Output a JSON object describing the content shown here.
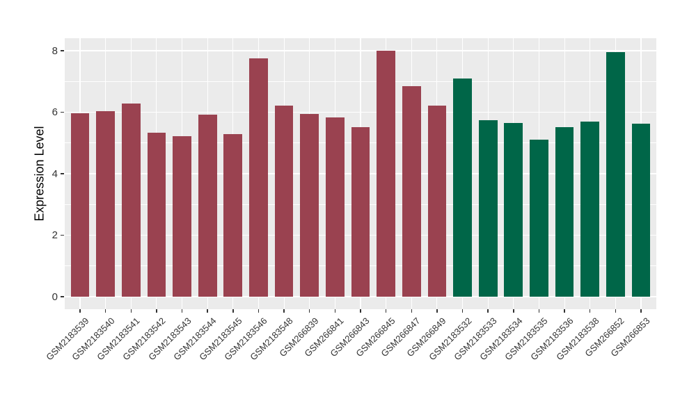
{
  "figure": {
    "ylabel": "Expression Level"
  },
  "chart_data": {
    "type": "bar",
    "title": "",
    "xlabel": "",
    "ylabel": "Expression Level",
    "panel_background": "#EBEBEB",
    "gridline_color": "#FFFFFF",
    "legend": "none",
    "y_ticks": [
      "0",
      "2",
      "4",
      "6",
      "8"
    ],
    "y_tick_values": [
      0,
      2,
      4,
      6,
      8
    ],
    "y_minor_tick_values": [
      1,
      3,
      5,
      7
    ],
    "ylim": [
      -0.41,
      8.41
    ],
    "group_colors": {
      "red": "#9A4250",
      "green": "#006648"
    },
    "categories": [
      "GSM2183539",
      "GSM2183540",
      "GSM2183541",
      "GSM2183542",
      "GSM2183543",
      "GSM2183544",
      "GSM2183545",
      "GSM2183546",
      "GSM2183548",
      "GSM266839",
      "GSM266841",
      "GSM266843",
      "GSM266845",
      "GSM266847",
      "GSM266849",
      "GSM2183532",
      "GSM2183533",
      "GSM2183534",
      "GSM2183535",
      "GSM2183536",
      "GSM2183538",
      "GSM266852",
      "GSM266853"
    ],
    "values": [
      5.97,
      6.03,
      6.28,
      5.34,
      5.21,
      5.92,
      5.28,
      7.76,
      6.22,
      5.94,
      5.84,
      5.52,
      8.0,
      6.85,
      6.22,
      7.09,
      5.74,
      5.66,
      5.11,
      5.52,
      5.7,
      7.95,
      5.63
    ],
    "groups": [
      "red",
      "red",
      "red",
      "red",
      "red",
      "red",
      "red",
      "red",
      "red",
      "red",
      "red",
      "red",
      "red",
      "red",
      "red",
      "green",
      "green",
      "green",
      "green",
      "green",
      "green",
      "green",
      "green"
    ]
  }
}
